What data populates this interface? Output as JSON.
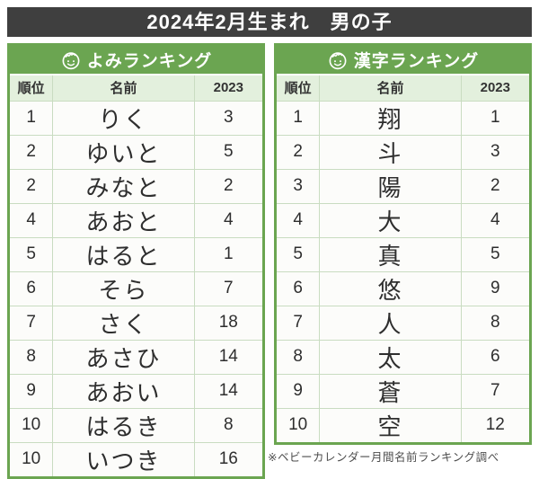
{
  "title": "2024年2月生まれ　男の子",
  "footnote": "※ベビーカレンダー月間名前ランキング調べ",
  "colors": {
    "dark": "#3f3f3f",
    "accent": "#6ba551",
    "light": "#e3f0dd",
    "innerborder": "#c9dcc1",
    "rowbg": "#fcfcfa",
    "text": "#2e2e2e",
    "footnote": "#4d4d4d"
  },
  "icons": [
    {
      "name": "baby-face-icon",
      "description": "white line-art baby boy face in green band"
    }
  ],
  "tables": [
    {
      "header": "よみランキング",
      "columns": [
        "順位",
        "名前",
        "2023"
      ],
      "rows": [
        {
          "rank": "1",
          "name": "りく",
          "prev": "3"
        },
        {
          "rank": "2",
          "name": "ゆいと",
          "prev": "5"
        },
        {
          "rank": "2",
          "name": "みなと",
          "prev": "2"
        },
        {
          "rank": "4",
          "name": "あおと",
          "prev": "4"
        },
        {
          "rank": "5",
          "name": "はると",
          "prev": "1"
        },
        {
          "rank": "6",
          "name": "そら",
          "prev": "7"
        },
        {
          "rank": "7",
          "name": "さく",
          "prev": "18"
        },
        {
          "rank": "8",
          "name": "あさひ",
          "prev": "14"
        },
        {
          "rank": "9",
          "name": "あおい",
          "prev": "14"
        },
        {
          "rank": "10",
          "name": "はるき",
          "prev": "8"
        },
        {
          "rank": "10",
          "name": "いつき",
          "prev": "16"
        }
      ]
    },
    {
      "header": "漢字ランキング",
      "columns": [
        "順位",
        "名前",
        "2023"
      ],
      "rows": [
        {
          "rank": "1",
          "name": "翔",
          "prev": "1"
        },
        {
          "rank": "2",
          "name": "斗",
          "prev": "3"
        },
        {
          "rank": "3",
          "name": "陽",
          "prev": "2"
        },
        {
          "rank": "4",
          "name": "大",
          "prev": "4"
        },
        {
          "rank": "5",
          "name": "真",
          "prev": "5"
        },
        {
          "rank": "6",
          "name": "悠",
          "prev": "9"
        },
        {
          "rank": "7",
          "name": "人",
          "prev": "8"
        },
        {
          "rank": "8",
          "name": "太",
          "prev": "6"
        },
        {
          "rank": "9",
          "name": "蒼",
          "prev": "7"
        },
        {
          "rank": "10",
          "name": "空",
          "prev": "12"
        }
      ]
    }
  ]
}
